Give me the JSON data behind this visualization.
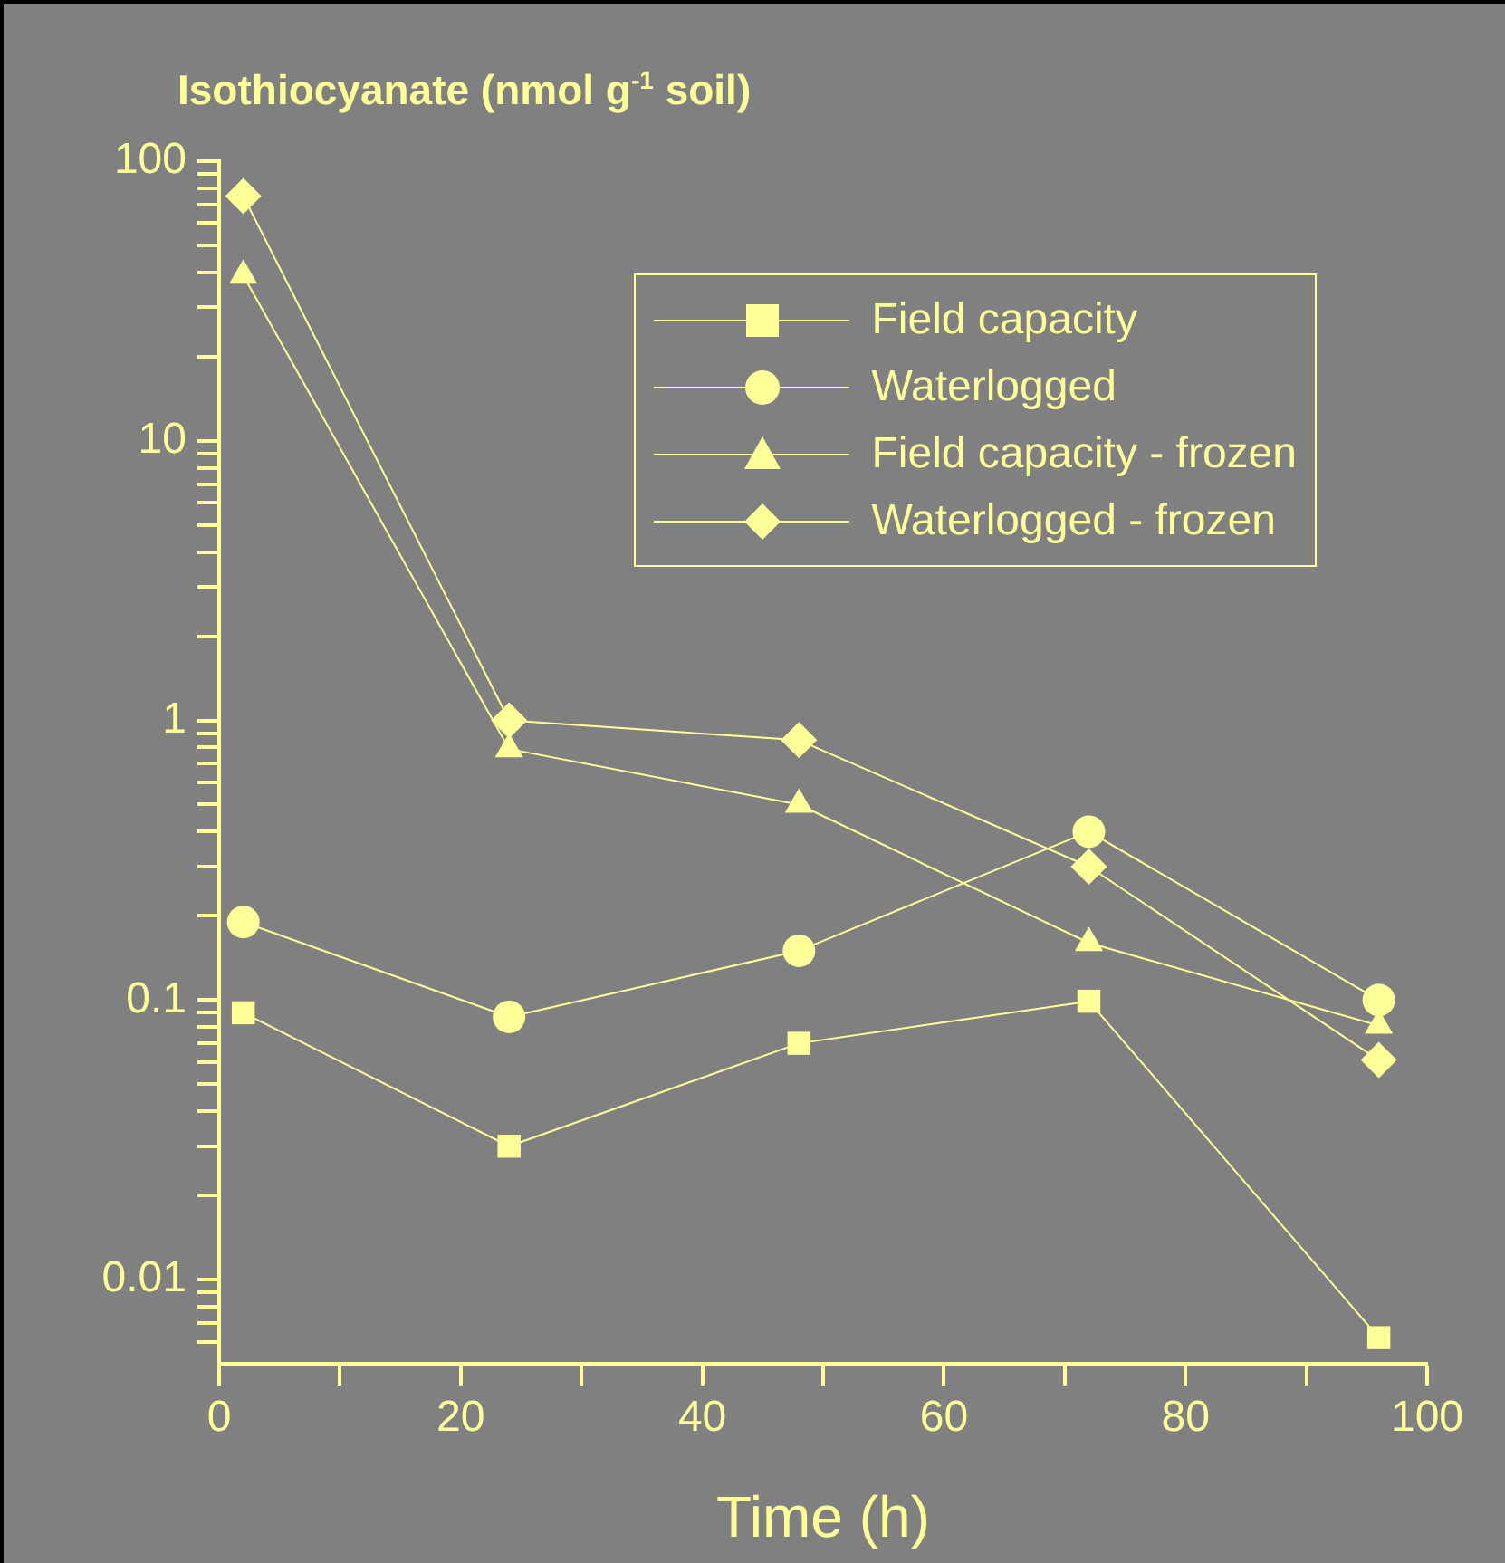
{
  "chart_data": {
    "type": "line",
    "ylabel": "Isothiocyanate (nmol g$^{-1}$ soil)",
    "xlabel": "Time (h)",
    "x": [
      2,
      24,
      48,
      72,
      96
    ],
    "series": [
      {
        "name": "Field capacity",
        "color": "#ffff99",
        "marker": "square",
        "values": [
          0.09,
          0.03,
          0.07,
          0.099,
          0.0062
        ]
      },
      {
        "name": "Waterlogged",
        "color": "#ffff99",
        "marker": "circle",
        "values": [
          0.19,
          0.087,
          0.15,
          0.4,
          0.1
        ]
      },
      {
        "name": "Field capacity - frozen",
        "color": "#ffff99",
        "marker": "triangle",
        "values": [
          39,
          0.79,
          0.5,
          0.16,
          0.081
        ]
      },
      {
        "name": "Waterlogged - frozen",
        "color": "#ffff99",
        "marker": "diamond",
        "values": [
          75,
          1.0,
          0.85,
          0.3,
          0.061
        ]
      }
    ],
    "log": "y",
    "grid": false,
    "legend": "top right",
    "line_style": "solid",
    "xlim": [
      0,
      100
    ],
    "xticks": [
      0,
      {
        "value": 10,
        "label": null
      },
      20,
      {
        "value": 30,
        "label": null
      },
      40,
      {
        "value": 50,
        "label": null
      },
      60,
      {
        "value": 70,
        "label": null
      },
      80,
      {
        "value": 90,
        "label": null
      },
      100
    ],
    "ylim": [
      0.005,
      100
    ],
    "yticks": [
      {
        "value": 0.006,
        "label": null
      },
      {
        "value": 0.007,
        "label": null
      },
      {
        "value": 0.008,
        "label": null
      },
      {
        "value": 0.009,
        "label": null
      },
      0.01,
      {
        "value": 0.02,
        "label": null
      },
      {
        "value": 0.03,
        "label": null
      },
      {
        "value": 0.04,
        "label": null
      },
      {
        "value": 0.05,
        "label": null
      },
      {
        "value": 0.06,
        "label": null
      },
      {
        "value": 0.07,
        "label": null
      },
      {
        "value": 0.08,
        "label": null
      },
      {
        "value": 0.09,
        "label": null
      },
      0.1,
      {
        "value": 0.2,
        "label": null
      },
      {
        "value": 0.3,
        "label": null
      },
      {
        "value": 0.4,
        "label": null
      },
      {
        "value": 0.5,
        "label": null
      },
      {
        "value": 0.6,
        "label": null
      },
      {
        "value": 0.7,
        "label": null
      },
      {
        "value": 0.8,
        "label": null
      },
      {
        "value": 0.9,
        "label": null
      },
      1,
      {
        "value": 2,
        "label": null
      },
      {
        "value": 3,
        "label": null
      },
      {
        "value": 4,
        "label": null
      },
      {
        "value": 5,
        "label": null
      },
      {
        "value": 6,
        "label": null
      },
      {
        "value": 7,
        "label": null
      },
      {
        "value": 8,
        "label": null
      },
      {
        "value": 9,
        "label": null
      },
      10,
      {
        "value": 20,
        "label": null
      },
      {
        "value": 30,
        "label": null
      },
      {
        "value": 40,
        "label": null
      },
      {
        "value": 50,
        "label": null
      },
      {
        "value": 60,
        "label": null
      },
      {
        "value": 70,
        "label": null
      },
      {
        "value": 80,
        "label": null
      },
      {
        "value": 90,
        "label": null
      },
      100
    ]
  }
}
